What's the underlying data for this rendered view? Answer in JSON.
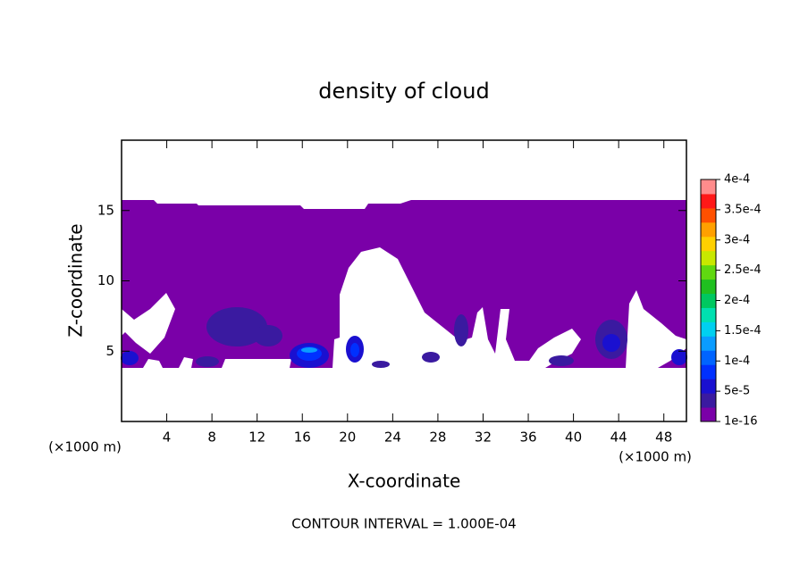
{
  "chart_data": {
    "type": "contour",
    "title": "density of cloud",
    "xlabel": "X-coordinate",
    "ylabel": "Z-coordinate",
    "xunit": "(×1000 m)",
    "yunit": "(×1000 m)",
    "footer": "CONTOUR INTERVAL = 1.000E-04",
    "xlim": [
      0,
      50
    ],
    "ylim": [
      0,
      20
    ],
    "xticks": [
      4,
      8,
      12,
      16,
      20,
      24,
      28,
      32,
      36,
      40,
      44,
      48
    ],
    "yticks": [
      5,
      10,
      15
    ],
    "colorbar": {
      "clim": [
        1e-16,
        0.0004
      ],
      "ticks": [
        {
          "value": 1e-16,
          "label": "1e-16"
        },
        {
          "value": 5e-05,
          "label": "5e-5"
        },
        {
          "value": 0.0001,
          "label": "1e-4"
        },
        {
          "value": 0.00015,
          "label": "1.5e-4"
        },
        {
          "value": 0.0002,
          "label": "2e-4"
        },
        {
          "value": 0.00025,
          "label": "2.5e-4"
        },
        {
          "value": 0.0003,
          "label": "3e-4"
        },
        {
          "value": 0.00035,
          "label": "3.5e-4"
        },
        {
          "value": 0.0004,
          "label": "4e-4"
        }
      ],
      "colors": [
        "#7a00a8",
        "#3a1aa0",
        "#1a10d0",
        "#0030ff",
        "#0064ff",
        "#0a9cff",
        "#00d0f0",
        "#00e0b0",
        "#00c860",
        "#20c020",
        "#60d810",
        "#c8e800",
        "#ffd000",
        "#ffa000",
        "#ff5000",
        "#ff1818",
        "#ff8c8c"
      ]
    }
  }
}
